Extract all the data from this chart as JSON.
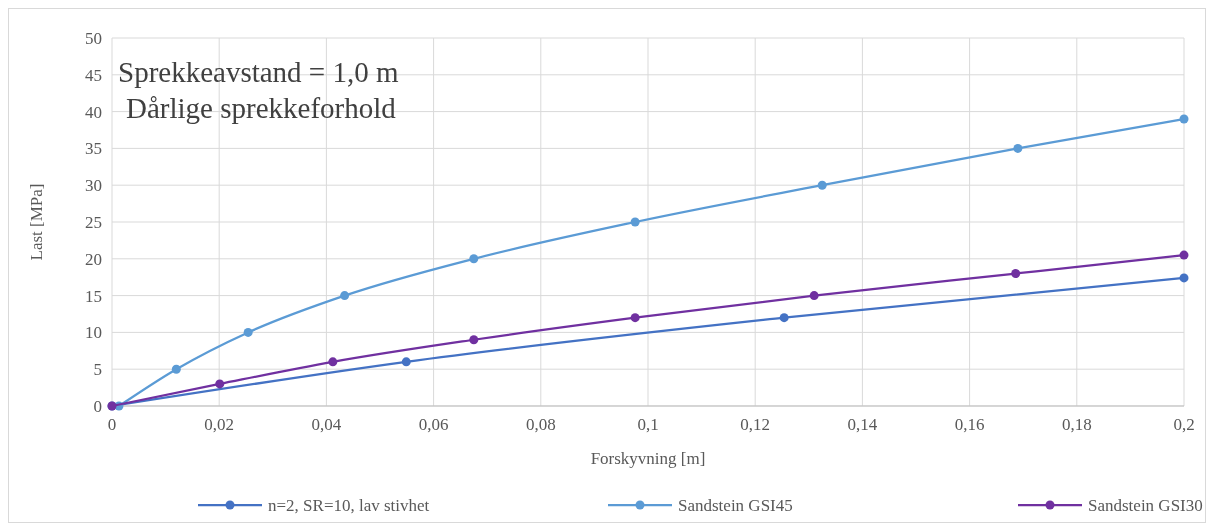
{
  "chart_data": {
    "type": "line",
    "title": "Sprekkeavstand  = 1,0 m",
    "subtitle": "Dårlige sprekkeforhold",
    "xlabel": "Forskyvning [m]",
    "ylabel": "Last [MPa]",
    "xlim": [
      0,
      0.2
    ],
    "xticks": [
      {
        "value": 0,
        "label": "0"
      },
      {
        "value": 0.02,
        "label": "0,02"
      },
      {
        "value": 0.04,
        "label": "0,04"
      },
      {
        "value": 0.06,
        "label": "0,06"
      },
      {
        "value": 0.08,
        "label": "0,08"
      },
      {
        "value": 0.1,
        "label": "0,1"
      },
      {
        "value": 0.12,
        "label": "0,12"
      },
      {
        "value": 0.14,
        "label": "0,14"
      },
      {
        "value": 0.16,
        "label": "0,16"
      },
      {
        "value": 0.18,
        "label": "0,18"
      },
      {
        "value": 0.2,
        "label": "0,2"
      }
    ],
    "ylim": [
      0,
      50
    ],
    "yticks": [
      0,
      5,
      10,
      15,
      20,
      25,
      30,
      35,
      40,
      45,
      50
    ],
    "grid": true,
    "legend": "bottom",
    "marker": "circle",
    "line_style": "solid",
    "series": [
      {
        "name": "n=2, SR=10, lav stivhet",
        "color": "#4472c4",
        "x": [
          0,
          0.0549,
          0.1254,
          0.2
        ],
        "values": [
          0,
          6,
          12,
          17.4
        ]
      },
      {
        "name": "Sandstein GSI45",
        "color": "#5b9bd5",
        "x": [
          0.0013,
          0.012,
          0.0254,
          0.0434,
          0.0675,
          0.0976,
          0.1325,
          0.169,
          0.2
        ],
        "values": [
          0,
          5,
          10,
          15,
          20,
          25,
          30,
          35,
          39
        ]
      },
      {
        "name": "Sandstein GSI30",
        "color": "#7030a0",
        "x": [
          0,
          0.0201,
          0.0412,
          0.0675,
          0.0976,
          0.131,
          0.1686,
          0.2
        ],
        "values": [
          0,
          3,
          6,
          9,
          12,
          15,
          18,
          20.5
        ]
      }
    ]
  }
}
